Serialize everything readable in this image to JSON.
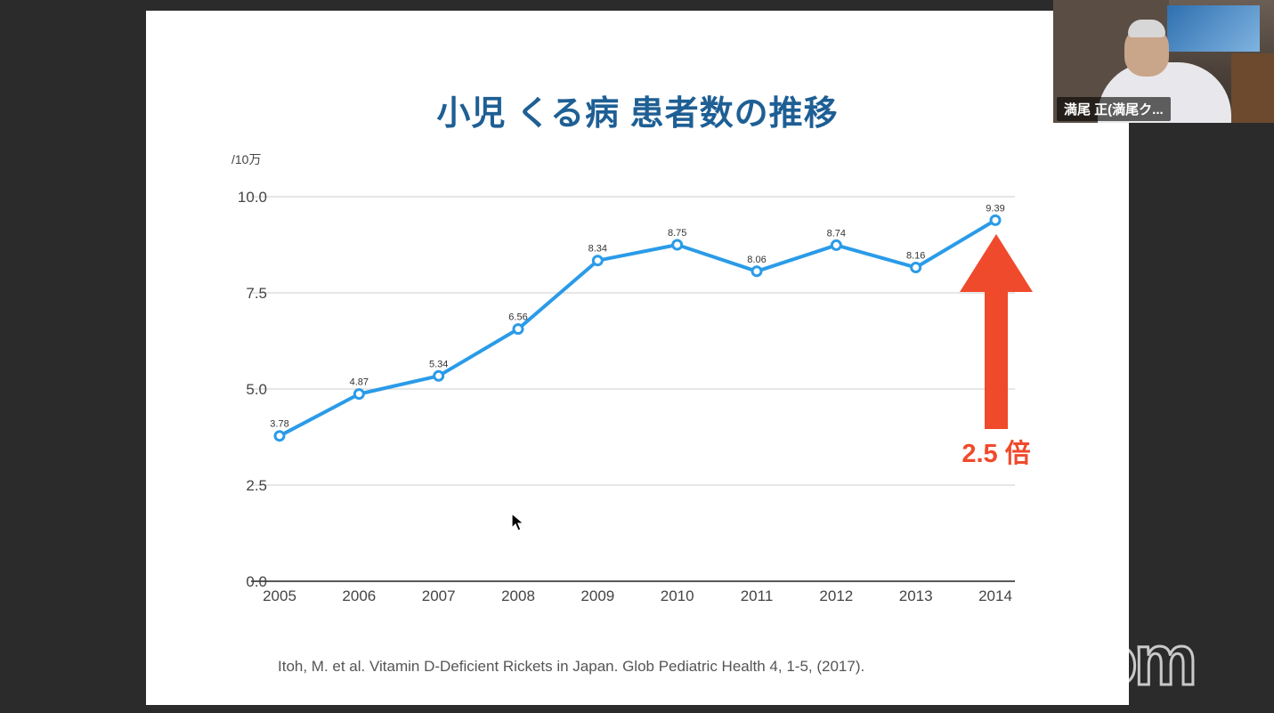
{
  "slide": {
    "title": "小児 くる病 患者数の推移",
    "citation": "Itoh, M. et al. Vitamin D-Deficient Rickets in Japan. Glob Pediatric Health 4, 1-5, (2017).",
    "callout": "2.5 倍"
  },
  "chart_data": {
    "type": "line",
    "title": "",
    "unit_label": "/10万",
    "categories": [
      "2005",
      "2006",
      "2007",
      "2008",
      "2009",
      "2010",
      "2011",
      "2012",
      "2013",
      "2014"
    ],
    "values": [
      3.78,
      4.87,
      5.34,
      6.56,
      8.34,
      8.75,
      8.06,
      8.74,
      8.16,
      9.39
    ],
    "data_labels": [
      "3.78",
      "4.87",
      "5.34",
      "6.56",
      "8.34",
      "8.75",
      "8.06",
      "8.74",
      "8.16",
      "9.39"
    ],
    "y_ticks": [
      "0.0",
      "2.5",
      "5.0",
      "7.5",
      "10.0"
    ],
    "ylim": [
      0,
      10
    ],
    "grid": true,
    "line_color": "#2a9be8",
    "arrow_color": "#f04a2c"
  },
  "participant": {
    "name": "満尾 正(満尾ク..."
  },
  "watermark": "zoom"
}
